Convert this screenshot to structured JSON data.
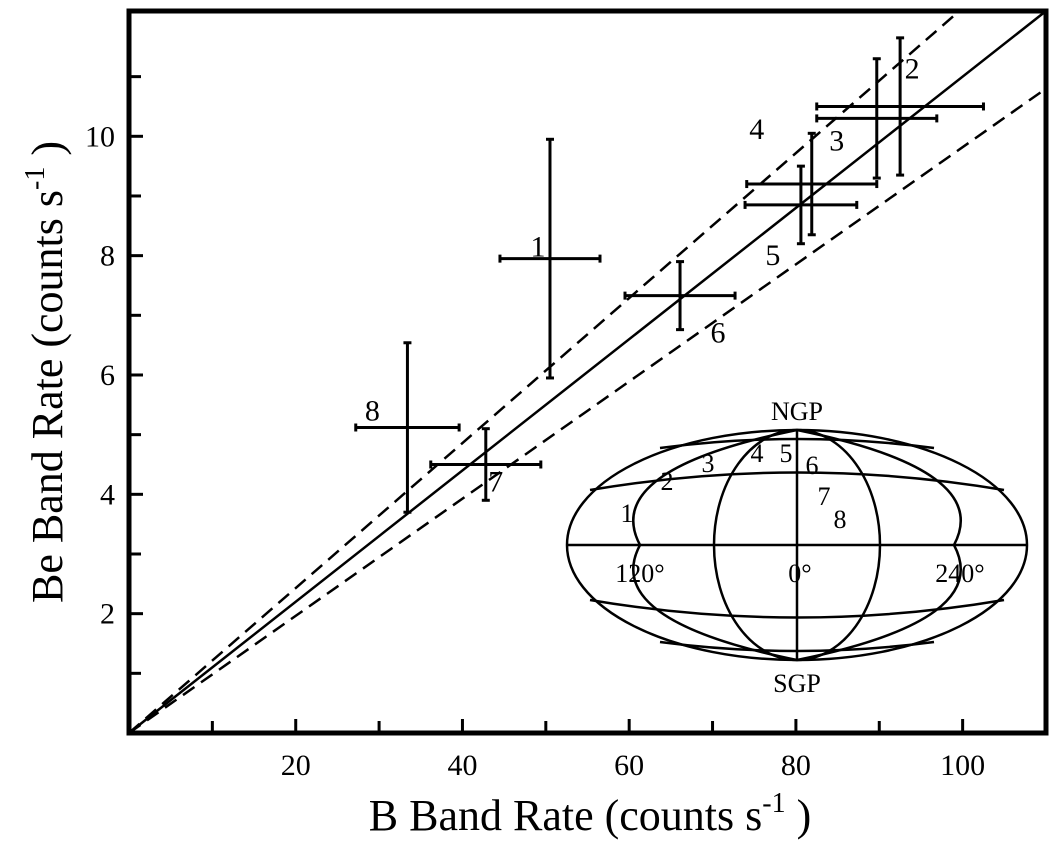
{
  "chart_data": {
    "type": "errorbar",
    "xlabel": {
      "text": "B Band Rate (counts s",
      "sup": "-1",
      "end": " )"
    },
    "ylabel": {
      "text": "Be Band Rate (counts s",
      "sup": "-1",
      "end": " )"
    },
    "xlim": [
      0,
      110
    ],
    "ylim": [
      0,
      12.1
    ],
    "xticks": [
      20,
      40,
      60,
      80,
      100
    ],
    "xminorticks": [
      10,
      30,
      50,
      70,
      90
    ],
    "yticks": [
      2,
      4,
      6,
      8,
      10
    ],
    "yminorticks": [
      1,
      3,
      5,
      7,
      9,
      11
    ],
    "color": "#000000",
    "points": [
      {
        "label": "1",
        "x": 50.5,
        "y": 7.95,
        "xerr": 6,
        "yerr": 2
      },
      {
        "label": "2",
        "x": 92.5,
        "y": 10.5,
        "xerr": 10,
        "yerr": 1.15
      },
      {
        "label": "3",
        "x": 89.7,
        "y": 10.3,
        "xerr": 7.2,
        "yerr": 1
      },
      {
        "label": "4",
        "x": 81.9,
        "y": 9.2,
        "xerr": 7.8,
        "yerr": 0.85
      },
      {
        "label": "5",
        "x": 80.6,
        "y": 8.85,
        "xerr": 6.7,
        "yerr": 0.65
      },
      {
        "label": "6",
        "x": 66.1,
        "y": 7.33,
        "xerr": 6.6,
        "yerr": 0.57
      },
      {
        "label": "7",
        "x": 42.8,
        "y": 4.5,
        "xerr": 6.6,
        "yerr": 0.6
      },
      {
        "label": "8",
        "x": 33.4,
        "y": 5.12,
        "xerr": 6.2,
        "yerr": 1.42
      }
    ],
    "fits": [
      {
        "style": "solid",
        "x": [
          0,
          110
        ],
        "y": [
          0,
          12.1
        ]
      },
      {
        "style": "dashed",
        "x": [
          0,
          99.6
        ],
        "y": [
          0,
          12.1
        ]
      },
      {
        "style": "dashed",
        "x": [
          0,
          110
        ],
        "y": [
          0,
          10.8
        ]
      }
    ],
    "inset": {
      "north": "NGP",
      "south": "SGP",
      "longitudes": [
        "120°",
        "0°",
        "240°"
      ],
      "labels": [
        "1",
        "2",
        "3",
        "4",
        "5",
        "6",
        "7",
        "8"
      ]
    }
  }
}
